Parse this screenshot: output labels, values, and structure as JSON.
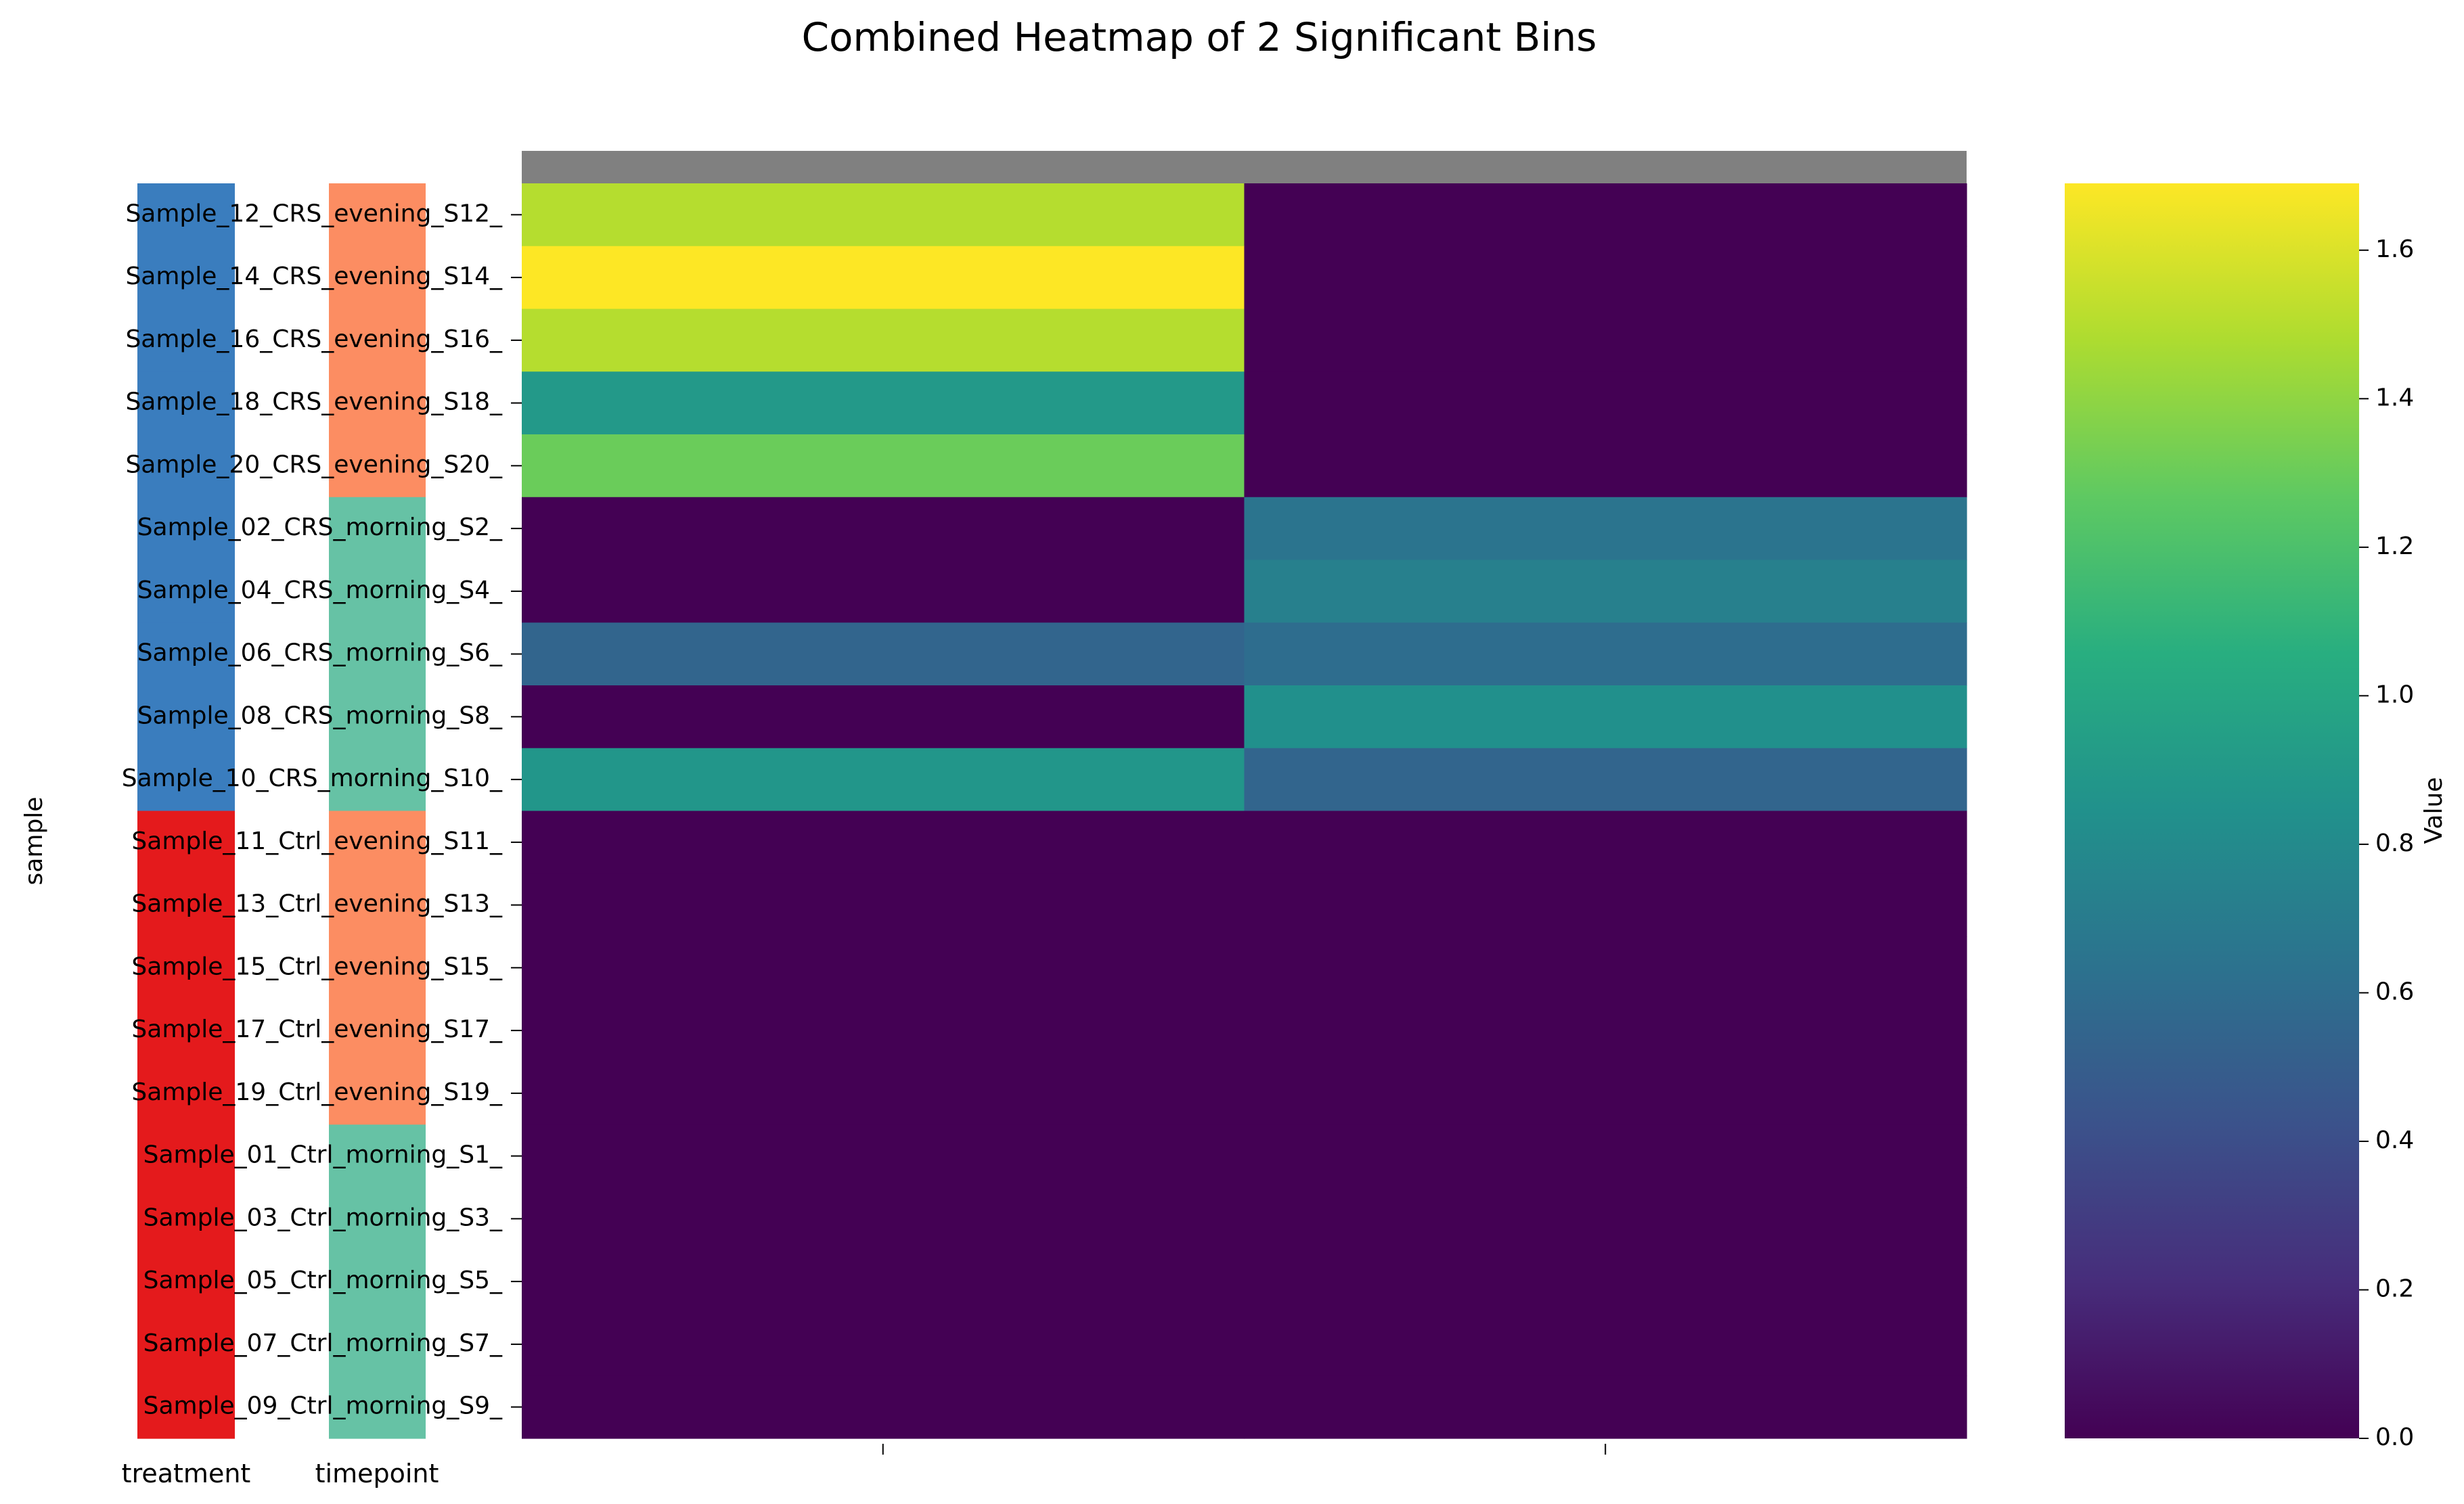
{
  "chart_data": {
    "type": "heatmap",
    "title": "Combined Heatmap of 2 Significant Bins",
    "ylabel": "sample",
    "x_tick_labels": [
      "",
      ""
    ],
    "rows": [
      "Sample_12_CRS_evening_S12_",
      "Sample_14_CRS_evening_S14_",
      "Sample_16_CRS_evening_S16_",
      "Sample_18_CRS_evening_S18_",
      "Sample_20_CRS_evening_S20_",
      "Sample_02_CRS_morning_S2_",
      "Sample_04_CRS_morning_S4_",
      "Sample_06_CRS_morning_S6_",
      "Sample_08_CRS_morning_S8_",
      "Sample_10_CRS_morning_S10_",
      "Sample_11_Ctrl_evening_S11_",
      "Sample_13_Ctrl_evening_S13_",
      "Sample_15_Ctrl_evening_S15_",
      "Sample_17_Ctrl_evening_S17_",
      "Sample_19_Ctrl_evening_S19_",
      "Sample_01_Ctrl_morning_S1_",
      "Sample_03_Ctrl_morning_S3_",
      "Sample_05_Ctrl_morning_S5_",
      "Sample_07_Ctrl_morning_S7_",
      "Sample_09_Ctrl_morning_S9_"
    ],
    "values": [
      [
        1.5,
        0.0
      ],
      [
        1.69,
        0.0
      ],
      [
        1.5,
        0.0
      ],
      [
        0.9,
        0.0
      ],
      [
        1.3,
        0.0
      ],
      [
        0.0,
        0.65
      ],
      [
        0.0,
        0.73
      ],
      [
        0.55,
        0.6
      ],
      [
        0.0,
        0.84
      ],
      [
        0.88,
        0.55
      ],
      [
        0.0,
        0.0
      ],
      [
        0.0,
        0.0
      ],
      [
        0.0,
        0.0
      ],
      [
        0.0,
        0.0
      ],
      [
        0.0,
        0.0
      ],
      [
        0.0,
        0.0
      ],
      [
        0.0,
        0.0
      ],
      [
        0.0,
        0.0
      ],
      [
        0.0,
        0.0
      ],
      [
        0.0,
        0.0
      ]
    ],
    "annotation_columns": [
      {
        "label": "treatment",
        "values": [
          "CRS",
          "CRS",
          "CRS",
          "CRS",
          "CRS",
          "CRS",
          "CRS",
          "CRS",
          "CRS",
          "CRS",
          "Ctrl",
          "Ctrl",
          "Ctrl",
          "Ctrl",
          "Ctrl",
          "Ctrl",
          "Ctrl",
          "Ctrl",
          "Ctrl",
          "Ctrl"
        ],
        "colors": {
          "CRS": "#3a7dbe",
          "Ctrl": "#e41a1c"
        }
      },
      {
        "label": "timepoint",
        "values": [
          "evening",
          "evening",
          "evening",
          "evening",
          "evening",
          "morning",
          "morning",
          "morning",
          "morning",
          "morning",
          "evening",
          "evening",
          "evening",
          "evening",
          "evening",
          "morning",
          "morning",
          "morning",
          "morning",
          "morning"
        ],
        "colors": {
          "evening": "#fc8d62",
          "morning": "#66c2a5"
        }
      }
    ],
    "column_header_color": "#808080",
    "colorbar": {
      "label": "Value",
      "min": 0.0,
      "max": 1.69,
      "ticks": [
        0.0,
        0.2,
        0.4,
        0.6,
        0.8,
        1.0,
        1.2,
        1.4,
        1.6
      ],
      "tick_labels": [
        "0.0",
        "0.2",
        "0.4",
        "0.6",
        "0.8",
        "1.0",
        "1.2",
        "1.4",
        "1.6"
      ],
      "colormap": "viridis"
    }
  }
}
